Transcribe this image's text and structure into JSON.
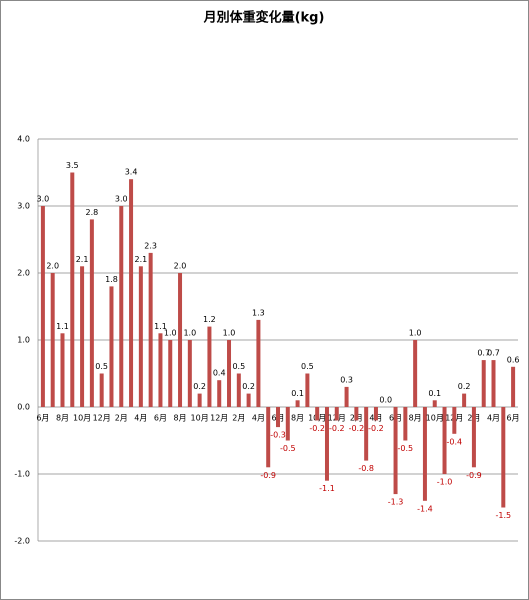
{
  "chart_data": {
    "type": "bar",
    "title": "月別体重変化量(kg)",
    "categories": [
      "6月",
      null,
      "8月",
      null,
      "10月",
      null,
      "12月",
      null,
      "2月",
      null,
      "4月",
      null,
      "6月",
      null,
      "8月",
      null,
      "10月",
      null,
      "12月",
      null,
      "2月",
      null,
      "4月",
      null,
      "6月",
      null,
      "8月",
      null,
      "10月",
      null,
      "12月",
      null,
      "2月",
      null,
      "4月",
      null,
      "6月",
      null,
      "8月",
      null,
      "10月",
      null,
      "12月",
      null,
      "2月",
      null,
      "4月",
      null,
      "6月"
    ],
    "values": [
      3.0,
      2.0,
      1.1,
      3.5,
      2.1,
      2.8,
      0.5,
      1.8,
      3.0,
      3.4,
      2.1,
      2.3,
      1.1,
      1.0,
      2.0,
      1.0,
      0.2,
      1.2,
      0.4,
      1.0,
      0.5,
      0.2,
      1.3,
      -0.9,
      -0.3,
      -0.5,
      0.1,
      0.5,
      -0.2,
      -1.1,
      -0.2,
      0.3,
      -0.2,
      -0.8,
      -0.2,
      0.0,
      -1.3,
      -0.5,
      1.0,
      -1.4,
      0.1,
      -1.0,
      -0.4,
      0.2,
      -0.9,
      0.7,
      0.7,
      -1.5,
      0.6
    ],
    "value_labels": [
      "3.0",
      "2.0",
      "1.1",
      "3.5",
      "2.1",
      "2.8",
      "0.5",
      "1.8",
      "3.0",
      "3.4",
      "2.1",
      "2.3",
      "1.1",
      "1.0",
      "2.0",
      "1.0",
      "0.2",
      "1.2",
      "0.4",
      "1.0",
      "0.5",
      "0.2",
      "1.3",
      "-0.9",
      "-0.3",
      "-0.5",
      "0.1",
      "0.5",
      "-0.2",
      "-1.1",
      "-0.2",
      "0.3",
      "-0.2",
      "-0.8",
      "-0.2",
      "0.0",
      "-1.3",
      "-0.5",
      "1.0",
      "-1.4",
      "0.1",
      "-1.0",
      "-0.4",
      "0.2",
      "-0.9",
      "0.7",
      "0.7",
      "-1.5",
      "0.6"
    ],
    "color": "#be4b48",
    "negative_label_color": "#c00000",
    "ylim": [
      -2,
      4
    ],
    "yticks": [
      {
        "value": -2,
        "label": "-2.0"
      },
      {
        "value": -1,
        "label": "-1.0"
      },
      {
        "value": 0,
        "label": "0.0"
      },
      {
        "value": 1,
        "label": "1.0"
      },
      {
        "value": 2,
        "label": "2.0"
      },
      {
        "value": 3,
        "label": "3.0"
      },
      {
        "value": 4,
        "label": "4.0"
      }
    ],
    "grid": true
  }
}
